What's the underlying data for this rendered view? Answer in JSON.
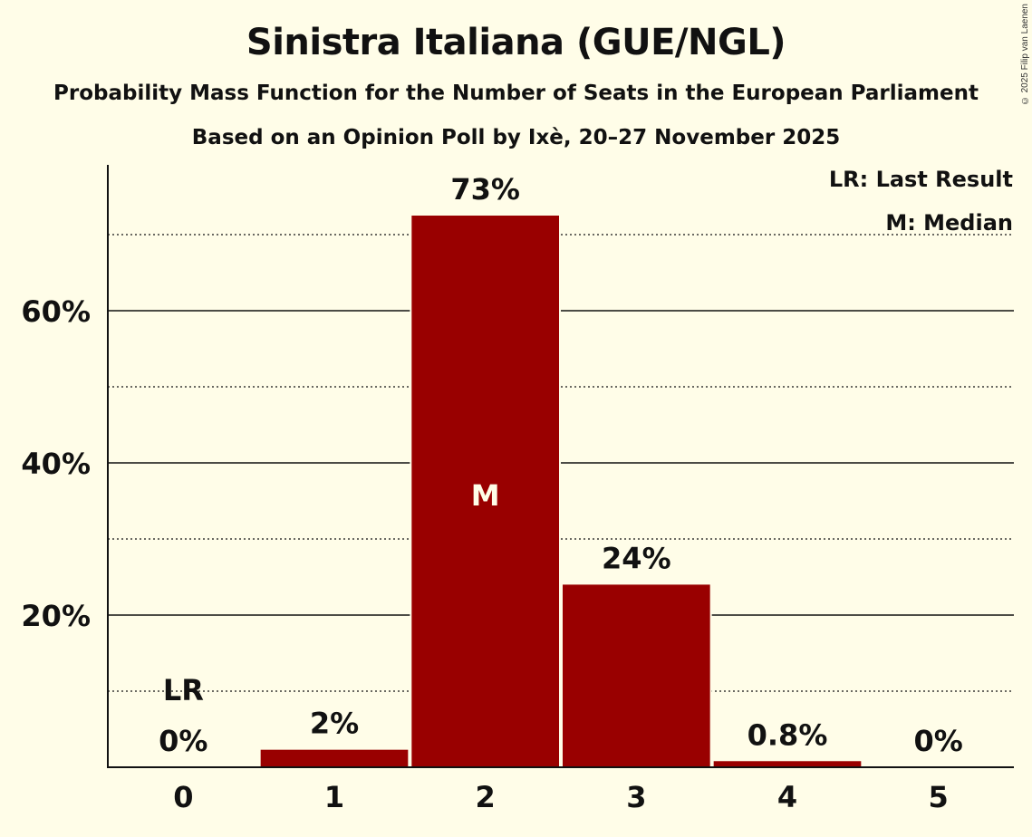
{
  "header": {
    "title": "Sinistra Italiana (GUE/NGL)",
    "subtitle": "Probability Mass Function for the Number of Seats in the European Parliament",
    "subtitle2": "Based on an Opinion Poll by Ixè, 20–27 November 2025",
    "copyright": "© 2025 Filip van Laenen"
  },
  "legend": {
    "lr": "LR: Last Result",
    "m": "M: Median"
  },
  "colors": {
    "background": "#fffde8",
    "bar": "#990000",
    "text": "#111111"
  },
  "chart_data": {
    "type": "bar",
    "title": "Sinistra Italiana (GUE/NGL)",
    "subtitle": "Probability Mass Function for the Number of Seats in the European Parliament",
    "xlabel": "",
    "ylabel": "",
    "categories": [
      "0",
      "1",
      "2",
      "3",
      "4",
      "5"
    ],
    "values": [
      0,
      2.3,
      72.5,
      24.0,
      0.8,
      0
    ],
    "data_labels": [
      "0%",
      "2%",
      "73%",
      "24%",
      "0.8%",
      "0%"
    ],
    "ylim": [
      0,
      78
    ],
    "y_ticks": [
      {
        "value": 20,
        "label": "20%"
      },
      {
        "value": 40,
        "label": "40%"
      },
      {
        "value": 60,
        "label": "60%"
      }
    ],
    "minor_gridlines": [
      10,
      30,
      50,
      70
    ],
    "annotations": [
      {
        "category": "0",
        "text": "LR",
        "meaning": "Last Result"
      },
      {
        "category": "2",
        "text": "M",
        "meaning": "Median"
      }
    ],
    "legend": [
      "LR: Last Result",
      "M: Median"
    ],
    "legend_position": "top-right"
  }
}
